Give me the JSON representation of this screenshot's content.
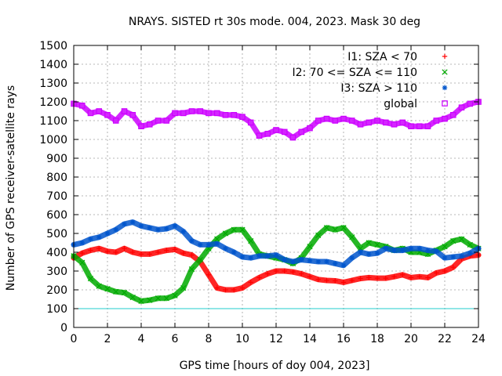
{
  "chart_data": {
    "type": "scatter",
    "title": "NRAYS. SISTED rt 30s mode. 004, 2023. Mask 30 deg",
    "xlabel": "GPS time [hours of doy 004, 2023]",
    "ylabel": "Number of GPS receiver-satellite rays",
    "xlim": [
      0,
      24
    ],
    "ylim": [
      0,
      1500
    ],
    "x_ticks": [
      0,
      2,
      4,
      6,
      8,
      10,
      12,
      14,
      16,
      18,
      20,
      22,
      24
    ],
    "x_tick_labels": [
      "0",
      "2",
      "4",
      "6",
      "8",
      "10",
      "12",
      "14",
      "16",
      "18",
      "20",
      "22",
      "24"
    ],
    "y_ticks": [
      0,
      100,
      200,
      300,
      400,
      500,
      600,
      700,
      800,
      900,
      1000,
      1100,
      1200,
      1300,
      1400,
      1500
    ],
    "y_tick_labels": [
      "0",
      "100",
      "200",
      "300",
      "400",
      "500",
      "600",
      "700",
      "800",
      "900",
      "1000",
      "1100",
      "1200",
      "1300",
      "1400",
      "1500"
    ],
    "grid": true,
    "legend_position": "top-right",
    "reference_line": {
      "y": 100,
      "color": "#22cccc"
    },
    "x": [
      0,
      0.5,
      1,
      1.5,
      2,
      2.5,
      3,
      3.5,
      4,
      4.5,
      5,
      5.5,
      6,
      6.5,
      7,
      7.5,
      8,
      8.5,
      9,
      9.5,
      10,
      10.5,
      11,
      11.5,
      12,
      12.5,
      13,
      13.5,
      14,
      14.5,
      15,
      15.5,
      16,
      16.5,
      17,
      17.5,
      18,
      18.5,
      19,
      19.5,
      20,
      20.5,
      21,
      21.5,
      22,
      22.5,
      23,
      23.5,
      24
    ],
    "series": [
      {
        "name": "I1: SZA < 70",
        "marker": "+",
        "color": "#ff0000",
        "values": [
          370,
          395,
          410,
          420,
          405,
          400,
          420,
          400,
          390,
          390,
          400,
          410,
          415,
          395,
          385,
          350,
          280,
          210,
          200,
          200,
          210,
          240,
          265,
          285,
          300,
          300,
          295,
          285,
          270,
          255,
          250,
          248,
          240,
          250,
          260,
          265,
          262,
          262,
          270,
          280,
          265,
          270,
          265,
          290,
          300,
          320,
          365,
          380,
          385
        ]
      },
      {
        "name": "I2: 70 <= SZA <= 110",
        "marker": "x",
        "color": "#00aa00",
        "values": [
          380,
          345,
          260,
          220,
          205,
          190,
          185,
          160,
          140,
          145,
          155,
          155,
          170,
          210,
          310,
          360,
          420,
          470,
          500,
          520,
          520,
          460,
          390,
          380,
          370,
          360,
          340,
          370,
          430,
          490,
          530,
          520,
          530,
          480,
          420,
          450,
          440,
          430,
          410,
          420,
          400,
          400,
          390,
          410,
          430,
          460,
          470,
          440,
          420
        ]
      },
      {
        "name": "I3: SZA > 110",
        "marker": "*",
        "color": "#0055cc",
        "values": [
          440,
          450,
          470,
          480,
          500,
          520,
          550,
          560,
          540,
          530,
          520,
          525,
          540,
          510,
          460,
          440,
          440,
          445,
          420,
          400,
          375,
          370,
          380,
          380,
          385,
          360,
          350,
          360,
          355,
          350,
          350,
          340,
          330,
          370,
          400,
          390,
          395,
          420,
          410,
          410,
          420,
          420,
          410,
          405,
          370,
          375,
          380,
          395,
          420
        ]
      },
      {
        "name": "global",
        "marker": "square",
        "color": "#cc00ff",
        "values": [
          1190,
          1180,
          1140,
          1150,
          1130,
          1100,
          1150,
          1130,
          1070,
          1080,
          1100,
          1100,
          1140,
          1140,
          1150,
          1150,
          1140,
          1140,
          1130,
          1130,
          1120,
          1090,
          1020,
          1030,
          1050,
          1040,
          1010,
          1040,
          1060,
          1100,
          1110,
          1100,
          1110,
          1100,
          1080,
          1090,
          1100,
          1090,
          1080,
          1090,
          1070,
          1070,
          1070,
          1100,
          1110,
          1130,
          1170,
          1190,
          1200
        ]
      }
    ]
  }
}
